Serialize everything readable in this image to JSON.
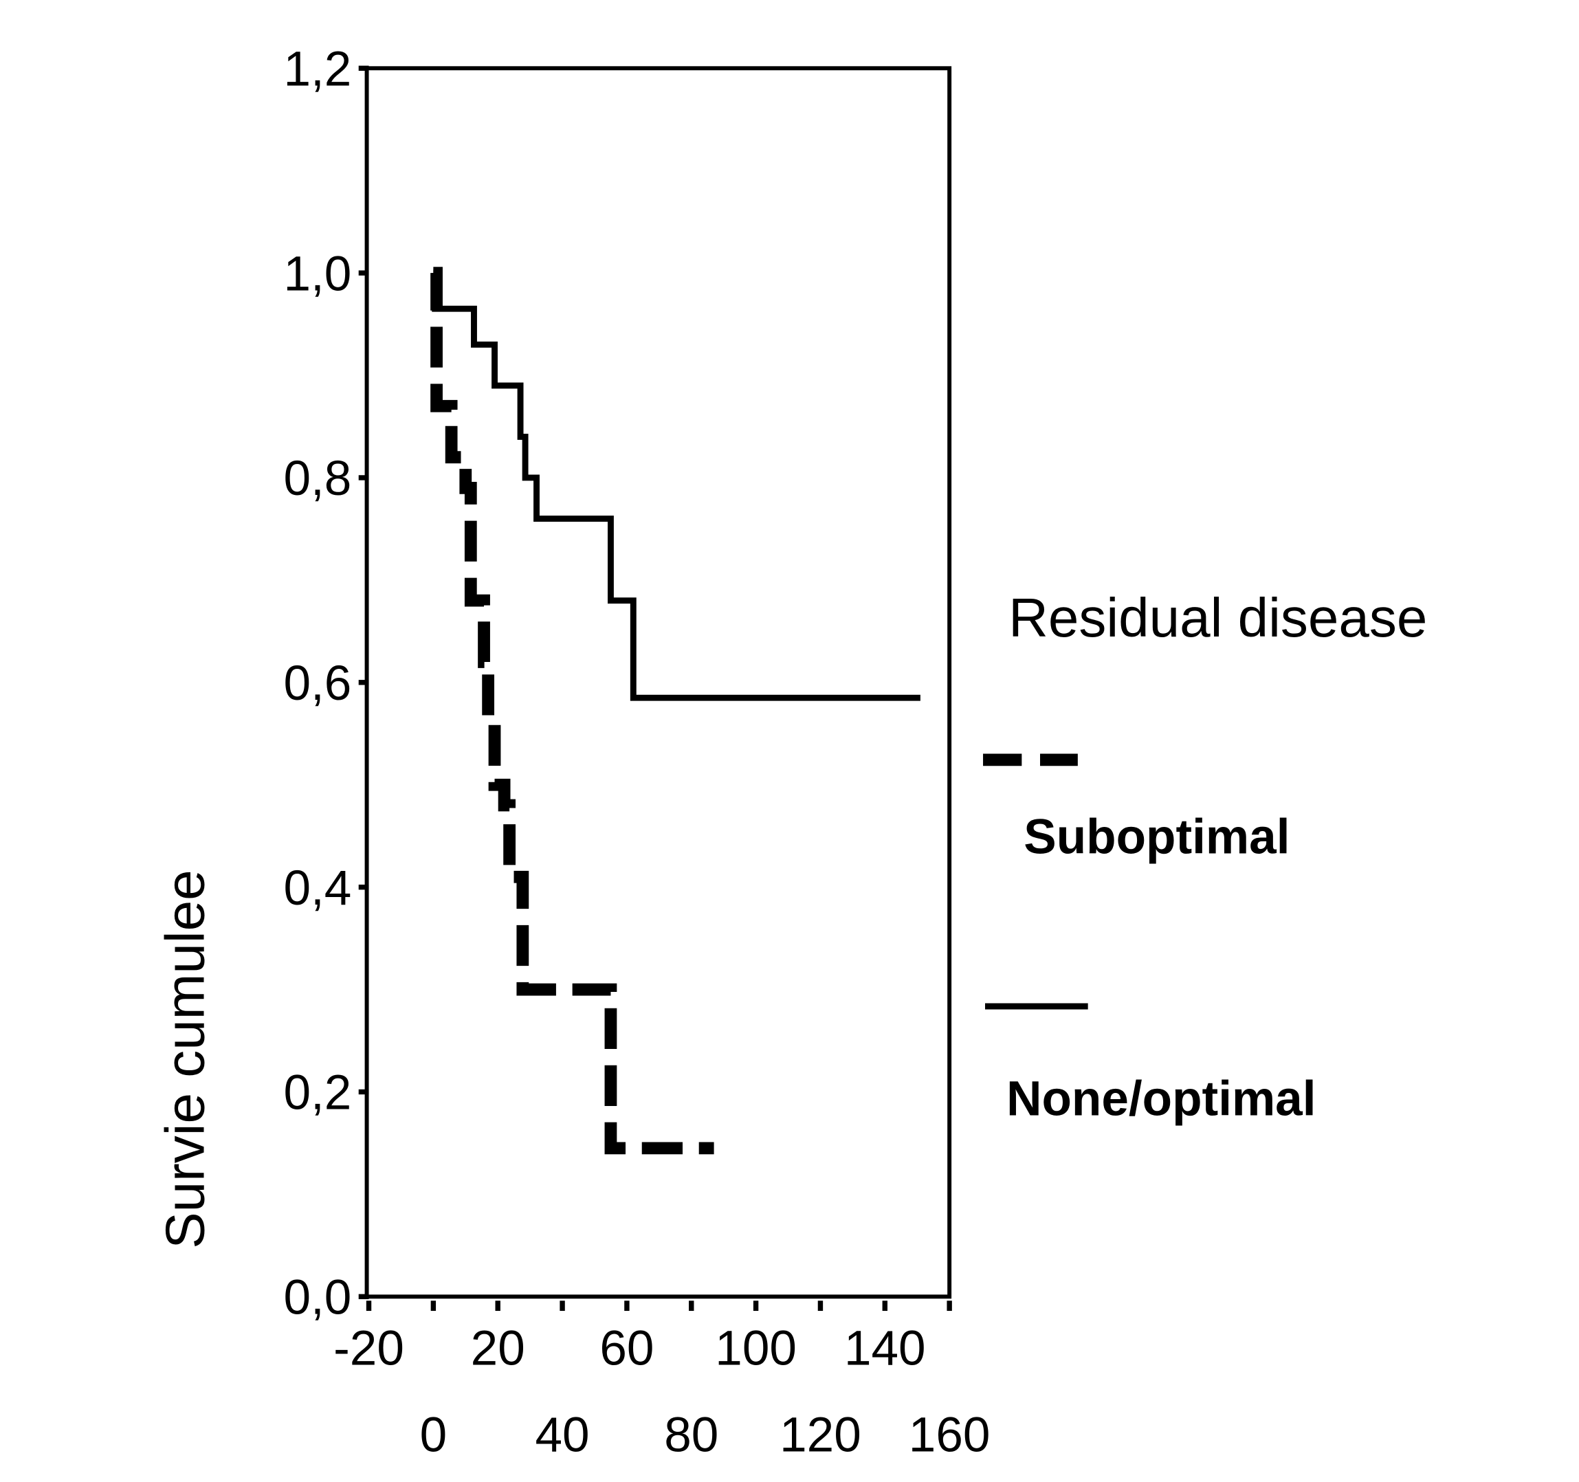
{
  "chart_data": {
    "type": "line",
    "subtype": "kaplan-meier step",
    "title": "",
    "xlabel": "",
    "ylabel": "Survie cumulee",
    "xlim": [
      -20,
      160
    ],
    "ylim": [
      0,
      1.2
    ],
    "x_ticks": [
      "-20",
      "0",
      "20",
      "40",
      "60",
      "80",
      "100",
      "120",
      "140",
      "160"
    ],
    "x_tick_values": [
      -20,
      0,
      20,
      40,
      60,
      80,
      100,
      120,
      140,
      160
    ],
    "y_ticks": [
      "0,0",
      "0,2",
      "0,4",
      "0,6",
      "0,8",
      "1,0",
      "1,2"
    ],
    "y_tick_values": [
      0,
      0.2,
      0.4,
      0.6,
      0.8,
      1.0,
      1.2
    ],
    "grid": false,
    "legend": {
      "title": "Residual disease",
      "placement": "right"
    },
    "series": [
      {
        "name": "Suboptimal",
        "style": "dashed",
        "color": "#000000",
        "steps": [
          [
            0,
            1.0
          ],
          [
            1,
            0.87
          ],
          [
            5.6,
            0.82
          ],
          [
            10,
            0.79
          ],
          [
            11.6,
            0.68
          ],
          [
            15.7,
            0.62
          ],
          [
            17,
            0.56
          ],
          [
            19,
            0.5
          ],
          [
            22,
            0.48
          ],
          [
            23.6,
            0.41
          ],
          [
            27.7,
            0.3
          ],
          [
            55,
            0.145
          ],
          [
            87,
            0.145
          ]
        ]
      },
      {
        "name": "None/optimal",
        "style": "solid",
        "color": "#000000",
        "steps": [
          [
            0,
            1.0
          ],
          [
            0.5,
            0.965
          ],
          [
            12.6,
            0.93
          ],
          [
            19,
            0.89
          ],
          [
            27,
            0.84
          ],
          [
            28.5,
            0.8
          ],
          [
            32,
            0.76
          ],
          [
            55,
            0.68
          ],
          [
            62,
            0.585
          ],
          [
            151,
            0.585
          ]
        ]
      }
    ]
  }
}
